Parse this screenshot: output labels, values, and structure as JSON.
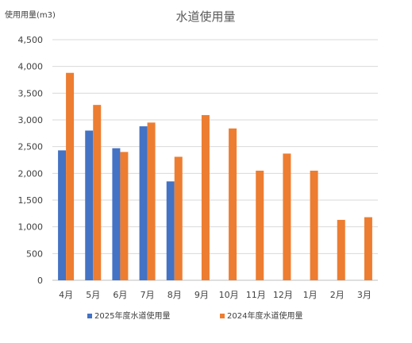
{
  "chart_data": {
    "type": "bar",
    "title": "水道使用量",
    "ylabel": "使用用量(m3)",
    "xlabel": "",
    "categories": [
      "4月",
      "5月",
      "6月",
      "7月",
      "8月",
      "9月",
      "10月",
      "11月",
      "12月",
      "1月",
      "2月",
      "3月"
    ],
    "ylim": [
      0,
      4500
    ],
    "yticks": [
      0,
      500,
      1000,
      1500,
      2000,
      2500,
      3000,
      3500,
      4000,
      4500
    ],
    "ytick_labels": [
      "0",
      "500",
      "1,000",
      "1,500",
      "2,000",
      "2,500",
      "3,000",
      "3,500",
      "4,000",
      "4,500"
    ],
    "grid": true,
    "legend_position": "bottom",
    "series": [
      {
        "name": "2025年度水道使用量",
        "color": "#4472C4",
        "values": [
          2430,
          2800,
          2470,
          2880,
          1850,
          null,
          null,
          null,
          null,
          null,
          null,
          null
        ]
      },
      {
        "name": "2024年度水道使用量",
        "color": "#ED7D31",
        "values": [
          3880,
          3280,
          2400,
          2950,
          2310,
          3090,
          2840,
          2050,
          2370,
          2050,
          1130,
          1180
        ]
      }
    ]
  }
}
